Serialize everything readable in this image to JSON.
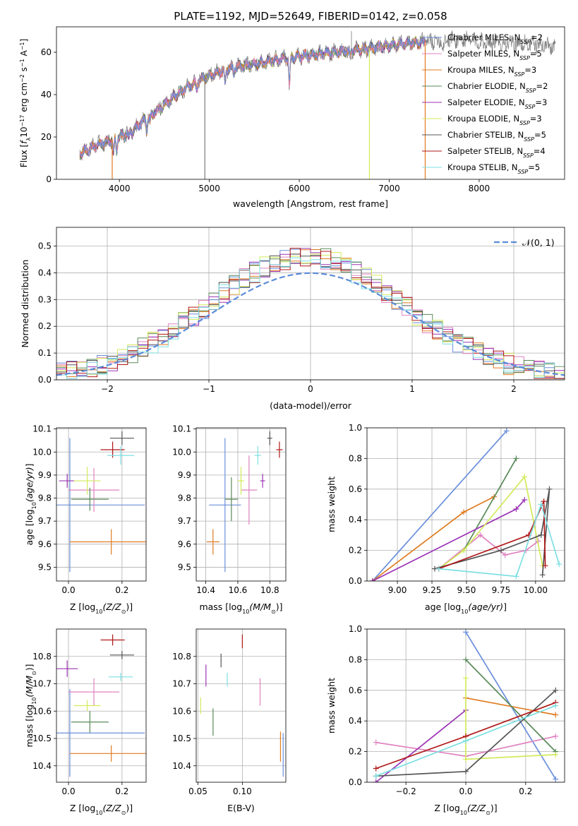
{
  "title": "PLATE=1192, MJD=52649, FIBERID=0142, z=0.058",
  "colors": {
    "chabrier_miles": "#6a8fdc",
    "salpeter_miles": "#e082c0",
    "kroupa_miles": "#e07b20",
    "chabrier_elodie": "#5a8a5a",
    "salpeter_elodie": "#9b35b5",
    "kroupa_elodie": "#d2ea5a",
    "chabrier_stelib": "#555555",
    "salpeter_stelib": "#b01818",
    "kroupa_stelib": "#7ddfe2",
    "data": "#7a7a7a",
    "gaussian": "#5b8bd9"
  },
  "models": [
    {
      "key": "chabrier_miles",
      "base": "Chabrier MILES, N",
      "sub": "SSP",
      "tail": "=2"
    },
    {
      "key": "salpeter_miles",
      "base": "Salpeter MILES, N",
      "sub": "SSP",
      "tail": "=5"
    },
    {
      "key": "kroupa_miles",
      "base": "Kroupa MILES, N",
      "sub": "SSP",
      "tail": "=3"
    },
    {
      "key": "chabrier_elodie",
      "base": "Chabrier ELODIE, N",
      "sub": "SSP",
      "tail": "=2"
    },
    {
      "key": "salpeter_elodie",
      "base": "Salpeter ELODIE, N",
      "sub": "SSP",
      "tail": "=3"
    },
    {
      "key": "kroupa_elodie",
      "base": "Kroupa ELODIE, N",
      "sub": "SSP",
      "tail": "=3"
    },
    {
      "key": "chabrier_stelib",
      "base": "Chabrier STELIB, N",
      "sub": "SSP",
      "tail": "=5"
    },
    {
      "key": "salpeter_stelib",
      "base": "Salpeter STELIB, N",
      "sub": "SSP",
      "tail": "=4"
    },
    {
      "key": "kroupa_stelib",
      "base": "Kroupa STELIB, N",
      "sub": "SSP",
      "tail": "=5"
    }
  ],
  "chart_data": [
    {
      "id": "spectrum",
      "type": "line",
      "xlabel": "wavelength [Angstrom, rest frame]",
      "ylabel": "Flux [f_λ 10^-17 erg cm^-2 s^-1 A^-1]",
      "xlim": [
        3300,
        8950
      ],
      "ylim": [
        0,
        72
      ],
      "xticks": [
        4000,
        5000,
        6000,
        7000,
        8000
      ],
      "yticks": [
        0,
        20,
        40,
        60
      ],
      "legend": "upper-right",
      "continuum": [
        [
          3560,
          12
        ],
        [
          3800,
          17
        ],
        [
          4000,
          20
        ],
        [
          4150,
          23
        ],
        [
          4300,
          29
        ],
        [
          4500,
          35
        ],
        [
          4700,
          42
        ],
        [
          4900,
          47
        ],
        [
          5000,
          49
        ],
        [
          5200,
          52
        ],
        [
          5400,
          54
        ],
        [
          5600,
          55
        ],
        [
          5800,
          57
        ],
        [
          6000,
          58
        ],
        [
          6200,
          59
        ],
        [
          6400,
          60
        ],
        [
          6600,
          61
        ],
        [
          6800,
          62
        ],
        [
          7000,
          63
        ],
        [
          7200,
          64
        ],
        [
          7400,
          65
        ],
        [
          7700,
          66
        ],
        [
          8000,
          65
        ],
        [
          8500,
          64
        ],
        [
          8850,
          63
        ]
      ],
      "absorption_features": [
        [
          3934,
          7
        ],
        [
          3969,
          6
        ],
        [
          4102,
          3
        ],
        [
          4305,
          6
        ],
        [
          4341,
          3
        ],
        [
          4861,
          4
        ],
        [
          5175,
          7
        ],
        [
          5270,
          3
        ],
        [
          5890,
          14
        ],
        [
          6563,
          3
        ],
        [
          7600,
          4
        ]
      ],
      "model_range": [
        3560,
        7400
      ],
      "data_range": [
        3560,
        8850
      ],
      "spikes": [
        {
          "x": 6580,
          "top": 70
        },
        {
          "x": 6780,
          "top": 60
        }
      ],
      "dips": [
        {
          "x": 4950
        },
        {
          "x": 3920
        },
        {
          "x": 6780
        },
        {
          "x": 7400
        }
      ]
    },
    {
      "id": "residual_histograms",
      "type": "step",
      "xlabel": "(data-model)/error",
      "ylabel": "Normed distribution",
      "xlim": [
        -2.5,
        2.5
      ],
      "ylim": [
        0,
        0.57
      ],
      "xticks": [
        -2,
        -1,
        0,
        1,
        2
      ],
      "yticks": [
        0.0,
        0.1,
        0.2,
        0.3,
        0.4,
        0.5
      ],
      "bin_width": 0.1,
      "gaussian_label": "𝒩(0, 1)",
      "legend": "upper-right"
    },
    {
      "id": "age_vs_Z",
      "type": "errorbar",
      "xlabel_pre": "Z [log",
      "xlabel_sub": "10",
      "xlabel_post": "(Z/Z",
      "xlabel_end": ")]",
      "ylabel": "age  [log10(age/yr)]",
      "xlim": [
        -0.045,
        0.29
      ],
      "ylim": [
        9.44,
        10.105
      ],
      "xticks": [
        0.0,
        0.2
      ],
      "yticks": [
        9.5,
        9.6,
        9.7,
        9.8,
        9.9,
        10.0,
        10.1
      ],
      "points": [
        {
          "model": "chabrier_miles",
          "x": 0.005,
          "xerr": 0.28,
          "y": 9.77,
          "yerr": 0.29
        },
        {
          "model": "salpeter_miles",
          "x": 0.095,
          "xerr": 0.095,
          "y": 9.835,
          "yerr": 0.095
        },
        {
          "model": "kroupa_miles",
          "x": 0.16,
          "xerr": 0.155,
          "y": 9.61,
          "yerr": 0.055
        },
        {
          "model": "chabrier_elodie",
          "x": 0.08,
          "xerr": 0.07,
          "y": 9.795,
          "yerr": 0.05
        },
        {
          "model": "salpeter_elodie",
          "x": -0.005,
          "xerr": 0.03,
          "y": 9.875,
          "yerr": 0.03
        },
        {
          "model": "kroupa_elodie",
          "x": 0.07,
          "xerr": 0.05,
          "y": 9.875,
          "yerr": 0.06
        },
        {
          "model": "chabrier_stelib",
          "x": 0.2,
          "xerr": 0.045,
          "y": 10.06,
          "yerr": 0.03
        },
        {
          "model": "salpeter_stelib",
          "x": 0.165,
          "xerr": 0.045,
          "y": 10.01,
          "yerr": 0.035
        },
        {
          "model": "kroupa_stelib",
          "x": 0.195,
          "xerr": 0.05,
          "y": 9.985,
          "yerr": 0.04
        }
      ]
    },
    {
      "id": "age_vs_mass",
      "type": "errorbar",
      "xlabel_pre": "mass [log",
      "xlabel_sub": "10",
      "xlabel_post": "(M/M",
      "xlabel_end": ")]",
      "xlim": [
        10.34,
        10.9
      ],
      "ylim": [
        9.44,
        10.105
      ],
      "xticks": [
        10.4,
        10.6,
        10.8
      ],
      "yticks": [
        9.5,
        9.6,
        9.7,
        9.8,
        9.9,
        10.0,
        10.1
      ],
      "points": [
        {
          "model": "chabrier_miles",
          "x": 10.52,
          "xerr": 0.1,
          "y": 9.77,
          "yerr": 0.29
        },
        {
          "model": "salpeter_miles",
          "x": 10.67,
          "xerr": 0.05,
          "y": 9.835,
          "yerr": 0.15
        },
        {
          "model": "kroupa_miles",
          "x": 10.445,
          "xerr": 0.04,
          "y": 9.61,
          "yerr": 0.055
        },
        {
          "model": "chabrier_elodie",
          "x": 10.56,
          "xerr": 0.04,
          "y": 9.795,
          "yerr": 0.095
        },
        {
          "model": "salpeter_elodie",
          "x": 10.755,
          "xerr": 0.015,
          "y": 9.875,
          "yerr": 0.03
        },
        {
          "model": "kroupa_elodie",
          "x": 10.62,
          "xerr": 0.02,
          "y": 9.875,
          "yerr": 0.06
        },
        {
          "model": "chabrier_stelib",
          "x": 10.8,
          "xerr": 0.015,
          "y": 10.06,
          "yerr": 0.03
        },
        {
          "model": "salpeter_stelib",
          "x": 10.86,
          "xerr": 0.02,
          "y": 10.01,
          "yerr": 0.035
        },
        {
          "model": "kroupa_stelib",
          "x": 10.725,
          "xerr": 0.02,
          "y": 9.985,
          "yerr": 0.04
        }
      ]
    },
    {
      "id": "mass_weight_vs_age",
      "type": "line",
      "xlabel": "age  [log10(age/yr)]",
      "ylabel": "mass weight",
      "xlim": [
        8.78,
        10.21
      ],
      "ylim": [
        0,
        1.0
      ],
      "xticks": [
        9.0,
        9.25,
        9.5,
        9.75,
        10.0
      ],
      "yticks": [
        0.0,
        0.2,
        0.4,
        0.6,
        0.8,
        1.0
      ],
      "series": [
        {
          "model": "chabrier_miles",
          "x": [
            8.82,
            9.79
          ],
          "y": [
            0.0,
            0.98
          ]
        },
        {
          "model": "salpeter_miles",
          "x": [
            9.3,
            9.6,
            9.78,
            9.93,
            10.02
          ],
          "y": [
            0.08,
            0.3,
            0.17,
            0.2,
            0.26
          ]
        },
        {
          "model": "kroupa_miles",
          "x": [
            8.82,
            9.48,
            9.7
          ],
          "y": [
            0.0,
            0.45,
            0.55
          ]
        },
        {
          "model": "chabrier_elodie",
          "x": [
            9.48,
            9.86
          ],
          "y": [
            0.2,
            0.8
          ]
        },
        {
          "model": "salpeter_elodie",
          "x": [
            8.82,
            9.86,
            9.92
          ],
          "y": [
            0.0,
            0.47,
            0.53
          ]
        },
        {
          "model": "kroupa_elodie",
          "x": [
            9.3,
            9.48,
            9.92,
            10.05
          ],
          "y": [
            0.08,
            0.2,
            0.68,
            0.1
          ]
        },
        {
          "model": "chabrier_stelib",
          "x": [
            9.27,
            9.75,
            10.04,
            10.1,
            10.05
          ],
          "y": [
            0.08,
            0.2,
            0.3,
            0.6,
            0.04
          ]
        },
        {
          "model": "salpeter_stelib",
          "x": [
            9.3,
            9.95,
            10.06,
            10.07
          ],
          "y": [
            0.08,
            0.3,
            0.52,
            0.1
          ]
        },
        {
          "model": "kroupa_stelib",
          "x": [
            9.3,
            9.86,
            10.04,
            10.17
          ],
          "y": [
            0.08,
            0.03,
            0.5,
            0.11
          ]
        }
      ]
    },
    {
      "id": "mass_vs_Z",
      "type": "errorbar",
      "xlabel_pre": "Z [log",
      "xlabel_sub": "10",
      "xlabel_post": "(Z/Z",
      "xlabel_end": ")]",
      "ylabel_pre": "mass [log",
      "ylabel_sub": "10",
      "ylabel_post": "(M/M",
      "ylabel_end": ")]",
      "xlim": [
        -0.045,
        0.29
      ],
      "ylim": [
        10.34,
        10.9
      ],
      "xticks": [
        0.0,
        0.2
      ],
      "yticks": [
        10.4,
        10.5,
        10.6,
        10.7,
        10.8
      ],
      "points": [
        {
          "model": "chabrier_miles",
          "x": 0.005,
          "xerr": 0.28,
          "y": 10.52,
          "yerr": 0.16
        },
        {
          "model": "salpeter_miles",
          "x": 0.095,
          "xerr": 0.095,
          "y": 10.67,
          "yerr": 0.05
        },
        {
          "model": "kroupa_miles",
          "x": 0.16,
          "xerr": 0.155,
          "y": 10.445,
          "yerr": 0.03
        },
        {
          "model": "chabrier_elodie",
          "x": 0.08,
          "xerr": 0.07,
          "y": 10.56,
          "yerr": 0.04
        },
        {
          "model": "salpeter_elodie",
          "x": -0.005,
          "xerr": 0.04,
          "y": 10.755,
          "yerr": 0.03
        },
        {
          "model": "kroupa_elodie",
          "x": 0.07,
          "xerr": 0.05,
          "y": 10.62,
          "yerr": 0.02
        },
        {
          "model": "chabrier_stelib",
          "x": 0.2,
          "xerr": 0.045,
          "y": 10.805,
          "yerr": 0.015
        },
        {
          "model": "salpeter_stelib",
          "x": 0.165,
          "xerr": 0.045,
          "y": 10.86,
          "yerr": 0.02
        },
        {
          "model": "kroupa_stelib",
          "x": 0.195,
          "xerr": 0.045,
          "y": 10.725,
          "yerr": 0.015
        }
      ]
    },
    {
      "id": "mass_vs_ebv",
      "type": "errorbar",
      "xlabel": "E(B-V)",
      "xlim": [
        0.048,
        0.149
      ],
      "ylim": [
        10.34,
        10.9
      ],
      "xticks": [
        0.05,
        0.1
      ],
      "yticks": [
        10.4,
        10.5,
        10.6,
        10.7,
        10.8
      ],
      "points": [
        {
          "model": "chabrier_miles",
          "x": 0.146,
          "xerr": 0,
          "y": 10.44,
          "yerr": 0.08
        },
        {
          "model": "salpeter_miles",
          "x": 0.12,
          "xerr": 0,
          "y": 10.67,
          "yerr": 0.05
        },
        {
          "model": "kroupa_miles",
          "x": 0.143,
          "xerr": 0,
          "y": 10.47,
          "yerr": 0.055
        },
        {
          "model": "chabrier_elodie",
          "x": 0.067,
          "xerr": 0,
          "y": 10.56,
          "yerr": 0.05
        },
        {
          "model": "salpeter_elodie",
          "x": 0.059,
          "xerr": 0,
          "y": 10.73,
          "yerr": 0.04
        },
        {
          "model": "kroupa_elodie",
          "x": 0.053,
          "xerr": 0,
          "y": 10.62,
          "yerr": 0.03
        },
        {
          "model": "chabrier_stelib",
          "x": 0.076,
          "xerr": 0,
          "y": 10.785,
          "yerr": 0.025
        },
        {
          "model": "salpeter_stelib",
          "x": 0.1,
          "xerr": 0,
          "y": 10.855,
          "yerr": 0.025
        },
        {
          "model": "kroupa_stelib",
          "x": 0.083,
          "xerr": 0,
          "y": 10.715,
          "yerr": 0.025
        }
      ]
    },
    {
      "id": "mass_weight_vs_Z",
      "type": "line",
      "xlabel_pre": "Z [log",
      "xlabel_sub": "10",
      "xlabel_post": "(Z/Z",
      "xlabel_end": ")]",
      "ylabel": "mass weight",
      "xlim": [
        -0.33,
        0.33
      ],
      "ylim": [
        0,
        1.0
      ],
      "xticks": [
        -0.2,
        0.0,
        0.2
      ],
      "yticks": [
        0.0,
        0.2,
        0.4,
        0.6,
        0.8,
        1.0
      ],
      "series": [
        {
          "model": "chabrier_miles",
          "x": [
            0.0,
            0.3
          ],
          "y": [
            0.98,
            0.02
          ]
        },
        {
          "model": "salpeter_miles",
          "x": [
            -0.3,
            0.0,
            0.3
          ],
          "y": [
            0.26,
            0.17,
            0.3
          ]
        },
        {
          "model": "kroupa_miles",
          "x": [
            0.0,
            0.3
          ],
          "y": [
            0.55,
            0.44
          ]
        },
        {
          "model": "chabrier_elodie",
          "x": [
            0.0,
            0.3
          ],
          "y": [
            0.8,
            0.2
          ]
        },
        {
          "model": "salpeter_elodie",
          "x": [
            -0.3,
            0.0
          ],
          "y": [
            0.0,
            0.47
          ]
        },
        {
          "model": "kroupa_elodie",
          "x": [
            0.0,
            0.0,
            0.3
          ],
          "y": [
            0.68,
            0.15,
            0.18
          ]
        },
        {
          "model": "chabrier_stelib",
          "x": [
            -0.3,
            0.0,
            0.3
          ],
          "y": [
            0.04,
            0.07,
            0.6
          ]
        },
        {
          "model": "salpeter_stelib",
          "x": [
            -0.3,
            0.0,
            0.3
          ],
          "y": [
            0.09,
            0.3,
            0.52
          ]
        },
        {
          "model": "kroupa_stelib",
          "x": [
            -0.3,
            0.0,
            0.3
          ],
          "y": [
            0.04,
            0.27,
            0.5
          ]
        }
      ]
    }
  ]
}
